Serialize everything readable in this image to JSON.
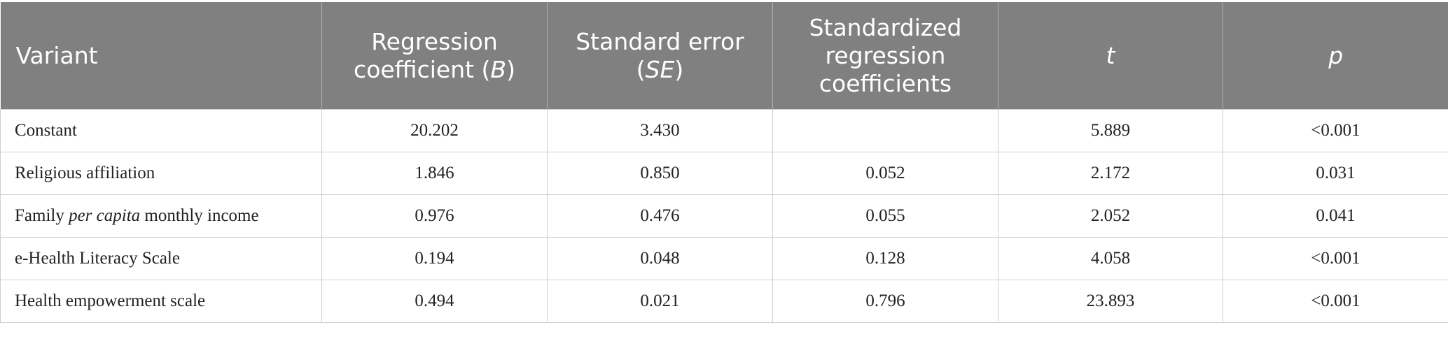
{
  "table": {
    "header": [
      [
        {
          "text": "Variant"
        }
      ],
      [
        {
          "text": "Regression coefficient ("
        },
        {
          "text": "B",
          "italic": true
        },
        {
          "text": ")"
        }
      ],
      [
        {
          "text": "Standard error ("
        },
        {
          "text": "SE",
          "italic": true
        },
        {
          "text": ")"
        }
      ],
      [
        {
          "text": "Standardized regression coefficients"
        }
      ],
      [
        {
          "text": "t",
          "italic": true
        }
      ],
      [
        {
          "text": "p",
          "italic": true
        }
      ]
    ],
    "rows": [
      [
        [
          {
            "text": "Constant"
          }
        ],
        "20.202",
        "3.430",
        null,
        "5.889",
        "<0.001"
      ],
      [
        [
          {
            "text": "Religious affiliation"
          }
        ],
        "1.846",
        "0.850",
        "0.052",
        "2.172",
        "0.031"
      ],
      [
        [
          {
            "text": "Family "
          },
          {
            "text": "per capita",
            "italic": true
          },
          {
            "text": " monthly income"
          }
        ],
        "0.976",
        "0.476",
        "0.055",
        "2.052",
        "0.041"
      ],
      [
        [
          {
            "text": "e-Health Literacy Scale"
          }
        ],
        "0.194",
        "0.048",
        "0.128",
        "4.058",
        "<0.001"
      ],
      [
        [
          {
            "text": "Health empowerment scale"
          }
        ],
        "0.494",
        "0.021",
        "0.796",
        "23.893",
        "<0.001"
      ]
    ]
  }
}
